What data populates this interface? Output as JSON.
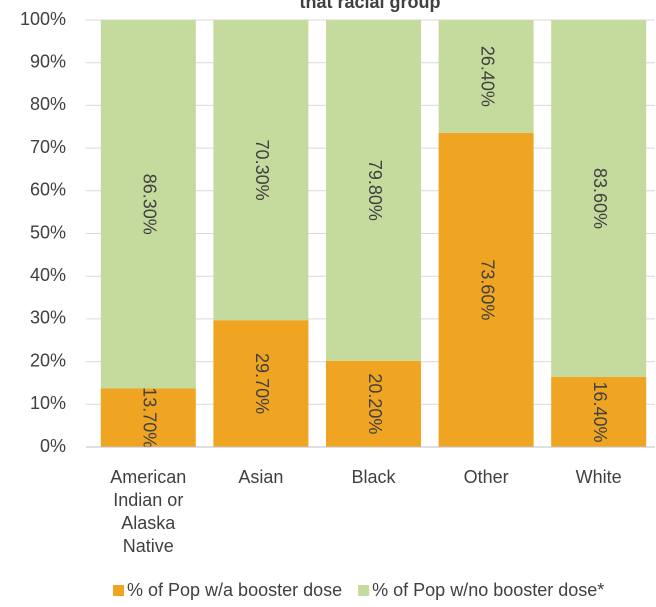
{
  "chart_data": {
    "type": "stacked_bar",
    "title": "that racial group",
    "categories": [
      "American Indian or Alaska Native",
      "Asian",
      "Black",
      "Other",
      "White"
    ],
    "series": [
      {
        "name": "% of Pop w/a booster dose",
        "color": "#f0a522",
        "values": [
          13.7,
          29.7,
          20.2,
          73.6,
          16.4
        ],
        "value_labels": [
          "13.70%",
          "29.70%",
          "20.20%",
          "73.60%",
          "16.40%"
        ]
      },
      {
        "name": "% of Pop w/no booster dose*",
        "color": "#c5da9d",
        "values": [
          86.3,
          70.3,
          79.8,
          26.4,
          83.6
        ],
        "value_labels": [
          "86.30%",
          "70.30%",
          "79.80%",
          "26.40%",
          "83.60%"
        ]
      }
    ],
    "ylim": [
      0,
      100
    ],
    "yticks": [
      {
        "value": 0,
        "label": "0%"
      },
      {
        "value": 10,
        "label": "10%"
      },
      {
        "value": 20,
        "label": "20%"
      },
      {
        "value": 30,
        "label": "30%"
      },
      {
        "value": 40,
        "label": "40%"
      },
      {
        "value": 50,
        "label": "50%"
      },
      {
        "value": 60,
        "label": "60%"
      },
      {
        "value": 70,
        "label": "70%"
      },
      {
        "value": 80,
        "label": "80%"
      },
      {
        "value": 90,
        "label": "90%"
      },
      {
        "value": 100,
        "label": "100%"
      }
    ],
    "grid": true
  }
}
